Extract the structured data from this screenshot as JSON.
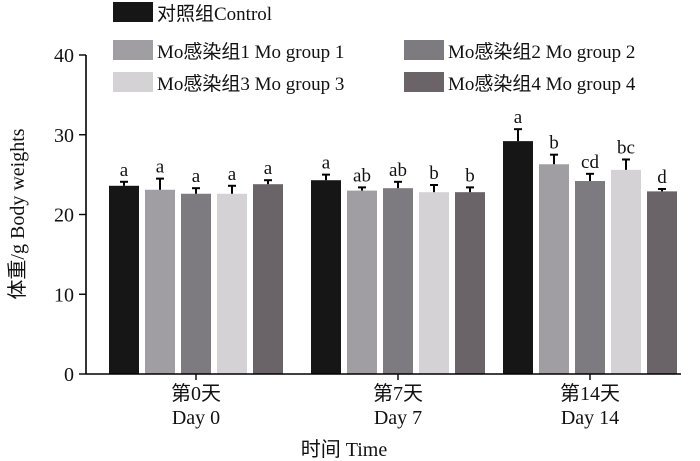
{
  "chart_data": {
    "type": "bar",
    "title": "",
    "ylabel": "体重/g Body weights",
    "xlabel": "时间 Time",
    "ylim": [
      0,
      40
    ],
    "yticks": [
      0,
      10,
      20,
      30,
      40
    ],
    "legend_position": "top",
    "groups": [
      {
        "line1": "第0天",
        "line2": "Day 0"
      },
      {
        "line1": "第7天",
        "line2": "Day 7"
      },
      {
        "line1": "第14天",
        "line2": "Day 14"
      }
    ],
    "series": [
      {
        "name": "对照组Control",
        "color": "#161616",
        "values": [
          23.6,
          24.3,
          29.2
        ],
        "errors": [
          0.5,
          0.7,
          1.5
        ],
        "letters": [
          "a",
          "a",
          "a"
        ]
      },
      {
        "name": "Mo感染组1 Mo group 1",
        "color": "#a09ea2",
        "values": [
          23.1,
          23.0,
          26.3
        ],
        "errors": [
          1.4,
          0.4,
          1.2
        ],
        "letters": [
          "a",
          "ab",
          "b"
        ]
      },
      {
        "name": "Mo感染组2 Mo group 2",
        "color": "#7d7b7f",
        "values": [
          22.6,
          23.3,
          24.2
        ],
        "errors": [
          0.7,
          0.8,
          0.9
        ],
        "letters": [
          "a",
          "ab",
          "cd"
        ]
      },
      {
        "name": "Mo感染组3 Mo group 3",
        "color": "#d5d2d6",
        "values": [
          22.6,
          22.8,
          25.6
        ],
        "errors": [
          1.0,
          0.9,
          1.3
        ],
        "letters": [
          "a",
          "b",
          "bc"
        ]
      },
      {
        "name": "Mo感染组4 Mo group 4",
        "color": "#6a6468",
        "values": [
          23.8,
          22.8,
          22.9
        ],
        "errors": [
          0.5,
          0.6,
          0.3
        ],
        "letters": [
          "a",
          "b",
          "d"
        ]
      }
    ]
  }
}
